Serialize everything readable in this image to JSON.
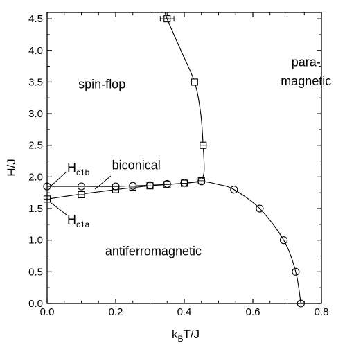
{
  "chart_data": {
    "type": "scatter",
    "title": "",
    "xlabel": {
      "main": "k",
      "sub": "B",
      "rest": "T/J"
    },
    "ylabel": "H/J",
    "xlim": [
      0,
      0.8
    ],
    "ylim": [
      0,
      4.6
    ],
    "x_ticks": [
      "0.0",
      "0.2",
      "0.4",
      "0.6",
      "0.8"
    ],
    "x_tick_values": [
      0,
      0.2,
      0.4,
      0.6,
      0.8
    ],
    "y_ticks": [
      "0.0",
      "0.5",
      "1.0",
      "1.5",
      "2.0",
      "2.5",
      "3.0",
      "3.5",
      "4.0",
      "4.5"
    ],
    "y_tick_values": [
      0,
      0.5,
      1.0,
      1.5,
      2.0,
      2.5,
      3.0,
      3.5,
      4.0,
      4.5
    ],
    "grid": false,
    "series": [
      {
        "marker": "square",
        "values": [
          {
            "x": 0.0,
            "y": 1.65
          },
          {
            "x": 0.1,
            "y": 1.72
          },
          {
            "x": 0.2,
            "y": 1.8
          },
          {
            "x": 0.25,
            "y": 1.84
          },
          {
            "x": 0.3,
            "y": 1.86
          },
          {
            "x": 0.35,
            "y": 1.88
          },
          {
            "x": 0.4,
            "y": 1.9
          },
          {
            "x": 0.45,
            "y": 1.94
          },
          {
            "x": 0.455,
            "y": 2.5
          },
          {
            "x": 0.43,
            "y": 3.5
          },
          {
            "x": 0.35,
            "y": 4.5,
            "xerr": 0.02
          }
        ]
      },
      {
        "marker": "circle",
        "values": [
          {
            "x": 0.0,
            "y": 1.85
          },
          {
            "x": 0.1,
            "y": 1.85
          },
          {
            "x": 0.2,
            "y": 1.85
          },
          {
            "x": 0.25,
            "y": 1.86
          },
          {
            "x": 0.3,
            "y": 1.87
          },
          {
            "x": 0.35,
            "y": 1.89
          },
          {
            "x": 0.4,
            "y": 1.91
          },
          {
            "x": 0.45,
            "y": 1.93
          },
          {
            "x": 0.545,
            "y": 1.8
          },
          {
            "x": 0.62,
            "y": 1.5
          },
          {
            "x": 0.69,
            "y": 1.0
          },
          {
            "x": 0.725,
            "y": 0.5
          },
          {
            "x": 0.74,
            "y": 0.0
          }
        ]
      }
    ],
    "curves": [
      {
        "points": [
          [
            0.0,
            1.65
          ],
          [
            0.1,
            1.73
          ],
          [
            0.2,
            1.8
          ],
          [
            0.3,
            1.86
          ],
          [
            0.4,
            1.9
          ],
          [
            0.45,
            1.93
          ]
        ]
      },
      {
        "points": [
          [
            0.0,
            1.85
          ],
          [
            0.1,
            1.85
          ],
          [
            0.2,
            1.85
          ],
          [
            0.3,
            1.87
          ],
          [
            0.4,
            1.9
          ],
          [
            0.45,
            1.93
          ],
          [
            0.5,
            1.88
          ],
          [
            0.545,
            1.8
          ],
          [
            0.62,
            1.5
          ],
          [
            0.69,
            1.0
          ],
          [
            0.725,
            0.5
          ],
          [
            0.74,
            0.0
          ]
        ]
      },
      {
        "points": [
          [
            0.338,
            4.72
          ],
          [
            0.35,
            4.5
          ],
          [
            0.39,
            4.0
          ],
          [
            0.43,
            3.5
          ],
          [
            0.448,
            3.0
          ],
          [
            0.455,
            2.5
          ],
          [
            0.458,
            2.1
          ],
          [
            0.45,
            1.93
          ]
        ]
      }
    ],
    "annotations": [
      {
        "text": "spin-flop",
        "x": 0.16,
        "y": 3.4
      },
      {
        "text": "para-",
        "x": 0.755,
        "y": 3.75
      },
      {
        "text": "magnetic",
        "x": 0.755,
        "y": 3.45
      },
      {
        "text": "biconical",
        "x": 0.26,
        "y": 2.12
      },
      {
        "text": "antiferromagnetic",
        "x": 0.31,
        "y": 0.76
      }
    ],
    "labels": {
      "Hc1b": {
        "main": "H",
        "sub": "c1b"
      },
      "Hc1a": {
        "main": "H",
        "sub": "c1a"
      }
    }
  }
}
